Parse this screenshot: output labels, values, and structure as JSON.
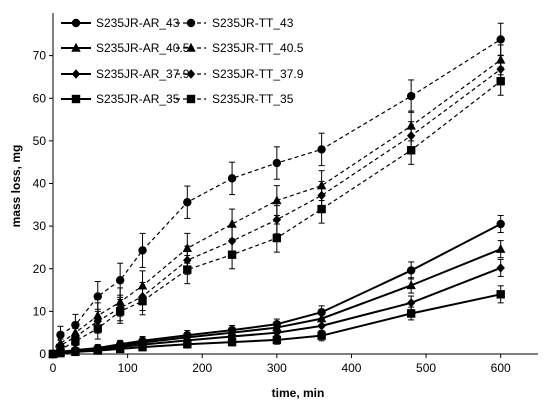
{
  "chart_data": {
    "type": "line",
    "title": "",
    "xlabel": "time, min",
    "ylabel": "mass loss, mg",
    "xlim": [
      0,
      650
    ],
    "ylim": [
      0,
      80
    ],
    "xticks": [
      0,
      100,
      200,
      300,
      400,
      500,
      600
    ],
    "yticks": [
      0,
      10,
      20,
      30,
      40,
      50,
      60,
      70
    ],
    "grid": false,
    "legend": "top-left, two columns",
    "x": [
      0,
      10,
      30,
      60,
      90,
      120,
      180,
      240,
      300,
      360,
      480,
      600
    ],
    "series": [
      {
        "name": "S235JR-AR_43",
        "marker": "circle",
        "line": "solid",
        "values": [
          0,
          0.5,
          0.9,
          1.4,
          2.3,
          3.1,
          4.4,
          5.6,
          7.0,
          9.8,
          19.6,
          30.5
        ],
        "errors": [
          0,
          0.5,
          0.6,
          0.8,
          0.9,
          1.0,
          1.1,
          1.1,
          1.2,
          1.5,
          2.0,
          2.0
        ]
      },
      {
        "name": "S235JR-TT_43",
        "marker": "circle",
        "line": "dashed",
        "values": [
          0,
          4.5,
          6.8,
          13.5,
          17.3,
          24.3,
          35.6,
          41.2,
          44.8,
          48.0,
          60.5,
          73.8
        ],
        "errors": [
          0,
          2.0,
          2.5,
          3.5,
          4.0,
          4.0,
          3.8,
          3.8,
          3.8,
          3.8,
          3.8,
          3.8
        ]
      },
      {
        "name": "S235JR-AR_40.5",
        "marker": "triangle",
        "line": "solid",
        "values": [
          0,
          0.4,
          0.8,
          1.2,
          2.0,
          2.7,
          3.9,
          5.0,
          6.2,
          8.3,
          16.1,
          24.6
        ],
        "errors": [
          0,
          0.5,
          0.6,
          0.8,
          0.9,
          1.0,
          1.0,
          1.1,
          1.1,
          1.4,
          1.8,
          2.0
        ]
      },
      {
        "name": "S235JR-TT_40.5",
        "marker": "triangle",
        "line": "dashed",
        "values": [
          0,
          2.5,
          5.0,
          9.0,
          12.2,
          16.0,
          24.8,
          30.5,
          36.0,
          39.5,
          53.5,
          69.0
        ],
        "errors": [
          0,
          1.5,
          2.0,
          3.0,
          3.3,
          3.5,
          3.5,
          3.5,
          3.5,
          3.5,
          3.5,
          3.5
        ]
      },
      {
        "name": "S235JR-AR_37.9",
        "marker": "diamond",
        "line": "solid",
        "values": [
          0,
          0.3,
          0.6,
          1.0,
          1.6,
          2.2,
          3.2,
          4.1,
          5.0,
          6.6,
          12.0,
          20.2
        ],
        "errors": [
          0,
          0.5,
          0.6,
          0.7,
          0.8,
          0.9,
          1.0,
          1.0,
          1.0,
          1.2,
          1.6,
          2.0
        ]
      },
      {
        "name": "S235JR-TT_37.9",
        "marker": "diamond",
        "line": "dashed",
        "values": [
          0,
          2.0,
          4.0,
          7.7,
          10.8,
          13.5,
          22.0,
          26.5,
          31.5,
          37.2,
          51.2,
          66.8
        ],
        "errors": [
          0,
          1.5,
          2.0,
          2.8,
          3.0,
          3.3,
          3.3,
          3.3,
          3.3,
          3.3,
          3.3,
          3.3
        ]
      },
      {
        "name": "S235JR-AR_35",
        "marker": "square",
        "line": "solid",
        "values": [
          0,
          0.2,
          0.5,
          0.8,
          1.2,
          1.6,
          2.3,
          2.8,
          3.3,
          4.3,
          9.5,
          14.0
        ],
        "errors": [
          0,
          0.4,
          0.5,
          0.6,
          0.7,
          0.8,
          0.9,
          0.9,
          1.0,
          1.2,
          1.5,
          2.0
        ]
      },
      {
        "name": "S235JR-TT_35",
        "marker": "square",
        "line": "dashed",
        "values": [
          0,
          1.0,
          3.0,
          6.0,
          10.0,
          12.4,
          19.8,
          23.3,
          27.2,
          34.0,
          47.8,
          64.0
        ],
        "errors": [
          0,
          1.2,
          1.8,
          2.5,
          2.8,
          3.2,
          3.3,
          3.3,
          3.3,
          3.3,
          3.3,
          3.3
        ]
      }
    ]
  },
  "colors": {
    "ink": "#000000",
    "background": "#ffffff"
  }
}
